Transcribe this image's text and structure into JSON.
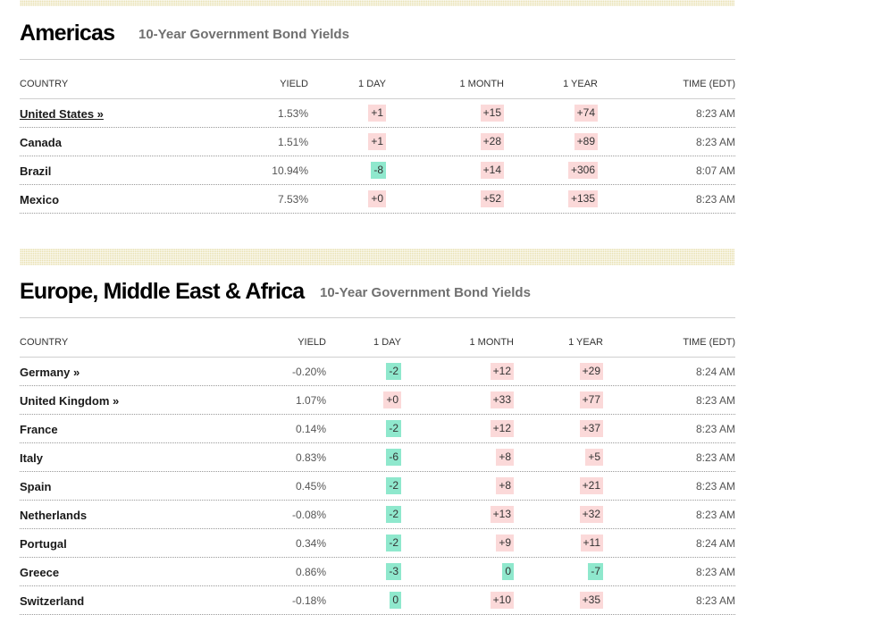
{
  "colors": {
    "up_bg": "#fbd9d9",
    "down_bg": "#8fe8cd",
    "band": "#e8e0b0"
  },
  "americas": {
    "title": "Americas",
    "subtitle": "10-Year Government Bond Yields",
    "headers": {
      "country": "COUNTRY",
      "yield": "YIELD",
      "day": "1 DAY",
      "month": "1 MONTH",
      "year": "1 YEAR",
      "time": "TIME (EDT)"
    },
    "rows": [
      {
        "country": "United States »",
        "yield": "1.53%",
        "day": "+1",
        "month": "+15",
        "year": "+74",
        "time": "8:23 AM"
      },
      {
        "country": "Canada",
        "yield": "1.51%",
        "day": "+1",
        "month": "+28",
        "year": "+89",
        "time": "8:23 AM"
      },
      {
        "country": "Brazil",
        "yield": "10.94%",
        "day": "-8",
        "month": "+14",
        "year": "+306",
        "time": "8:07 AM"
      },
      {
        "country": "Mexico",
        "yield": "7.53%",
        "day": "+0",
        "month": "+52",
        "year": "+135",
        "time": "8:23 AM"
      }
    ]
  },
  "emea": {
    "title": "Europe, Middle East & Africa",
    "subtitle": "10-Year Government Bond Yields",
    "headers": {
      "country": "COUNTRY",
      "yield": "YIELD",
      "day": "1 DAY",
      "month": "1 MONTH",
      "year": "1 YEAR",
      "time": "TIME (EDT)"
    },
    "rows": [
      {
        "country": "Germany »",
        "yield": "-0.20%",
        "day": "-2",
        "month": "+12",
        "year": "+29",
        "time": "8:24 AM"
      },
      {
        "country": "United Kingdom »",
        "yield": "1.07%",
        "day": "+0",
        "month": "+33",
        "year": "+77",
        "time": "8:23 AM"
      },
      {
        "country": "France",
        "yield": "0.14%",
        "day": "-2",
        "month": "+12",
        "year": "+37",
        "time": "8:23 AM"
      },
      {
        "country": "Italy",
        "yield": "0.83%",
        "day": "-6",
        "month": "+8",
        "year": "+5",
        "time": "8:23 AM"
      },
      {
        "country": "Spain",
        "yield": "0.45%",
        "day": "-2",
        "month": "+8",
        "year": "+21",
        "time": "8:23 AM"
      },
      {
        "country": "Netherlands",
        "yield": "-0.08%",
        "day": "-2",
        "month": "+13",
        "year": "+32",
        "time": "8:23 AM"
      },
      {
        "country": "Portugal",
        "yield": "0.34%",
        "day": "-2",
        "month": "+9",
        "year": "+11",
        "time": "8:24 AM"
      },
      {
        "country": "Greece",
        "yield": "0.86%",
        "day": "-3",
        "month": "0",
        "year": "-7",
        "time": "8:23 AM"
      },
      {
        "country": "Switzerland",
        "yield": "-0.18%",
        "day": "0",
        "month": "+10",
        "year": "+35",
        "time": "8:23 AM"
      }
    ]
  }
}
